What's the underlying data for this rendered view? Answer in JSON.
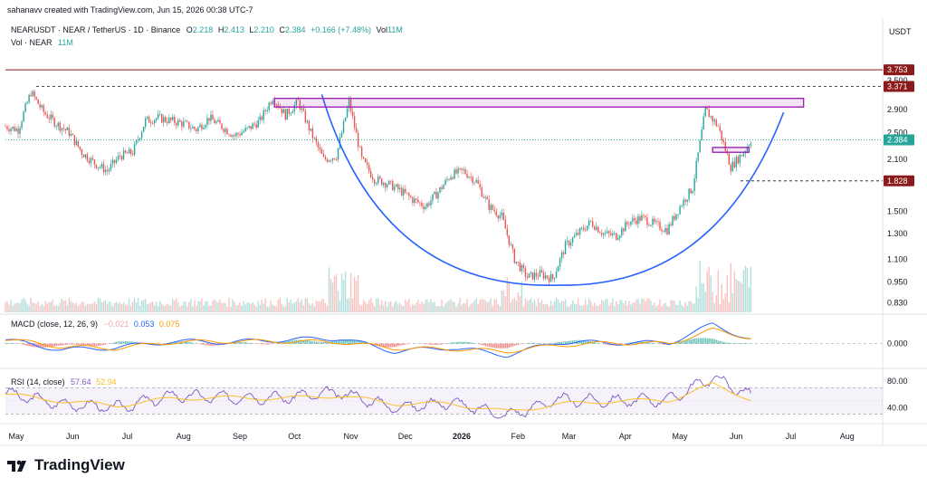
{
  "header": {
    "credit": "sahanavv created with TradingView.com, Jun 15, 2026 00:38 UTC-7",
    "symbol": "NEARUSDT · NEAR / TetherUS · 1D · Binance",
    "ohlc": {
      "o_label": "O",
      "o": "2.218",
      "h_label": "H",
      "h": "2.413",
      "l_label": "L",
      "l": "2.210",
      "c_label": "C",
      "c": "2.384",
      "change": "+0.166 (+7.48%)",
      "vol_label": "Vol",
      "vol": "11M"
    },
    "vol_line_label": "Vol · NEAR",
    "vol_line_value": "11M",
    "currency": "USDT"
  },
  "brand": {
    "name": "TradingView"
  },
  "colors": {
    "up": "#26a69a",
    "down": "#ef5350",
    "curve": "#2962ff",
    "box": "#9c27b0",
    "macd": "#2962ff",
    "signal": "#ff9800",
    "rsi": "#7e57c2",
    "rsi_ma": "#fbc02d",
    "maroon": "#8b1a1a",
    "dark_label": "#131722"
  },
  "chart_data": [
    {
      "type": "line",
      "name_shown": "NEARUSDT price (candlestick, log scale)",
      "scale": "log",
      "x_range": [
        "2025-05-01",
        "2026-08-25"
      ],
      "x_tick_labels": [
        "May",
        "Jun",
        "Jul",
        "Aug",
        "Sep",
        "Oct",
        "Nov",
        "Dec",
        "2026",
        "Feb",
        "Mar",
        "Apr",
        "May",
        "Jun",
        "Jul",
        "Aug"
      ],
      "y_tick_labels": [
        "3.500",
        "2.900",
        "2.500",
        "2.100",
        "1.500",
        "1.300",
        "1.100",
        "0.950",
        "0.830"
      ],
      "y_ticks": [
        3.5,
        2.9,
        2.5,
        2.1,
        1.5,
        1.3,
        1.1,
        0.95,
        0.83
      ],
      "ylim": [
        0.78,
        4.2
      ],
      "price_labels": [
        {
          "value": 3.753,
          "text": "3.753",
          "style": "maroon-line"
        },
        {
          "value": 3.371,
          "text": "3.371",
          "style": "dashed"
        },
        {
          "value": 2.384,
          "text": "2.384",
          "style": "current"
        },
        {
          "value": 1.828,
          "text": "1.828",
          "style": "dashed"
        }
      ],
      "series": [
        {
          "name": "Close (approx.)",
          "x": [
            "2025-05-01",
            "2025-05-08",
            "2025-05-15",
            "2025-05-22",
            "2025-05-29",
            "2025-06-05",
            "2025-06-12",
            "2025-06-19",
            "2025-06-26",
            "2025-07-03",
            "2025-07-10",
            "2025-07-17",
            "2025-07-24",
            "2025-07-31",
            "2025-08-07",
            "2025-08-14",
            "2025-08-21",
            "2025-08-28",
            "2025-09-04",
            "2025-09-11",
            "2025-09-18",
            "2025-09-25",
            "2025-10-02",
            "2025-10-09",
            "2025-10-16",
            "2025-10-23",
            "2025-10-30",
            "2025-11-06",
            "2025-11-13",
            "2025-11-20",
            "2025-11-27",
            "2025-12-04",
            "2025-12-11",
            "2025-12-18",
            "2025-12-25",
            "2026-01-01",
            "2026-01-08",
            "2026-01-15",
            "2026-01-22",
            "2026-01-29",
            "2026-02-05",
            "2026-02-12",
            "2026-02-19",
            "2026-02-26",
            "2026-03-05",
            "2026-03-12",
            "2026-03-19",
            "2026-03-26",
            "2026-04-02",
            "2026-04-09",
            "2026-04-16",
            "2026-04-23",
            "2026-04-30",
            "2026-05-07",
            "2026-05-14",
            "2026-05-21",
            "2026-05-28",
            "2026-06-04",
            "2026-06-11",
            "2026-06-15"
          ],
          "values": [
            2.6,
            2.55,
            3.25,
            2.85,
            2.65,
            2.5,
            2.2,
            2.05,
            1.95,
            2.15,
            2.2,
            2.7,
            2.75,
            2.7,
            2.65,
            2.55,
            2.75,
            2.6,
            2.45,
            2.55,
            2.7,
            3.15,
            2.8,
            3.05,
            2.5,
            2.1,
            2.15,
            3.05,
            2.1,
            1.85,
            1.8,
            1.72,
            1.62,
            1.55,
            1.7,
            1.9,
            1.95,
            1.82,
            1.55,
            1.45,
            1.1,
            0.98,
            1.0,
            0.97,
            1.2,
            1.3,
            1.4,
            1.3,
            1.28,
            1.4,
            1.44,
            1.38,
            1.33,
            1.55,
            1.75,
            2.9,
            2.6,
            2.0,
            2.2,
            2.384
          ]
        }
      ],
      "annotations": [
        {
          "type": "rounding-bottom-curve",
          "from": [
            "2025-10-22",
            3.2
          ],
          "bottom": [
            "2026-03-01",
            0.93
          ],
          "to": [
            "2026-07-03",
            2.85
          ]
        },
        {
          "type": "resistance-box",
          "x": [
            "2025-09-26",
            "2026-07-14"
          ],
          "y": [
            2.95,
            3.12
          ]
        },
        {
          "type": "box",
          "x": [
            "2026-05-25",
            "2026-06-14"
          ],
          "y": [
            2.2,
            2.27
          ]
        },
        {
          "type": "horizontal-line",
          "value": 3.753
        },
        {
          "type": "horizontal-dashed",
          "value": 3.371
        },
        {
          "type": "horizontal-dashed",
          "value": 1.828
        }
      ]
    },
    {
      "type": "bar",
      "name_shown": "Vol · NEAR",
      "latest_label": "11M",
      "values_relative": "volume bars at bottom of price pane, spike in Nov 2025 and May–Jun 2026"
    },
    {
      "type": "line",
      "name_shown": "MACD (close, 12, 26, 9)",
      "legend": {
        "title": "MACD (close, 12, 26, 9)",
        "values": [
          "−0.021",
          "0.053",
          "0.075"
        ]
      },
      "y_tick_labels": [
        "0.000"
      ],
      "y_ticks": [
        0
      ],
      "ylim": [
        -0.3,
        0.35
      ],
      "series": [
        {
          "name": "MACD",
          "x": [
            "2025-05-01",
            "2025-06-01",
            "2025-07-01",
            "2025-08-01",
            "2025-09-01",
            "2025-10-01",
            "2025-11-01",
            "2025-12-01",
            "2026-01-01",
            "2026-02-01",
            "2026-03-01",
            "2026-04-01",
            "2026-05-01",
            "2026-05-25",
            "2026-06-15"
          ],
          "values": [
            0.05,
            -0.08,
            -0.05,
            0.03,
            0.02,
            0.05,
            0.07,
            -0.1,
            -0.05,
            -0.15,
            0.02,
            0.01,
            0.01,
            0.25,
            0.053
          ]
        },
        {
          "name": "Signal",
          "x": [
            "2025-05-01",
            "2025-06-01",
            "2025-07-01",
            "2025-08-01",
            "2025-09-01",
            "2025-10-01",
            "2025-11-01",
            "2025-12-01",
            "2026-01-01",
            "2026-02-01",
            "2026-03-01",
            "2026-04-01",
            "2026-05-01",
            "2026-05-25",
            "2026-06-15"
          ],
          "values": [
            0.06,
            -0.04,
            -0.06,
            0.02,
            0.03,
            0.03,
            0.02,
            -0.06,
            -0.07,
            -0.1,
            -0.02,
            0.01,
            0.0,
            0.18,
            0.075
          ]
        }
      ]
    },
    {
      "type": "line",
      "name_shown": "RSI (14, close)",
      "legend": {
        "title": "RSI (14, close)",
        "values": [
          "57.64",
          "52.94"
        ]
      },
      "y_tick_labels": [
        "80.00",
        "40.00"
      ],
      "y_ticks": [
        80,
        40
      ],
      "ylim": [
        20,
        95
      ],
      "band": [
        30,
        70
      ],
      "series": [
        {
          "name": "RSI",
          "x": [
            "2025-05-01",
            "2025-06-01",
            "2025-07-01",
            "2025-08-01",
            "2025-09-01",
            "2025-10-01",
            "2025-11-01",
            "2025-12-01",
            "2026-01-01",
            "2026-02-01",
            "2026-03-01",
            "2026-04-01",
            "2026-05-01",
            "2026-05-25",
            "2026-06-15"
          ],
          "values": [
            62,
            45,
            40,
            58,
            55,
            55,
            63,
            40,
            48,
            28,
            52,
            50,
            52,
            86,
            57.64
          ]
        },
        {
          "name": "MA",
          "x": [
            "2025-05-01",
            "2025-06-01",
            "2025-07-01",
            "2025-08-01",
            "2025-09-01",
            "2025-10-01",
            "2025-11-01",
            "2025-12-01",
            "2026-01-01",
            "2026-02-01",
            "2026-03-01",
            "2026-04-01",
            "2026-05-01",
            "2026-05-25",
            "2026-06-15"
          ],
          "values": [
            60,
            50,
            43,
            54,
            55,
            54,
            58,
            46,
            46,
            34,
            45,
            50,
            51,
            75,
            52.94
          ]
        }
      ]
    }
  ]
}
